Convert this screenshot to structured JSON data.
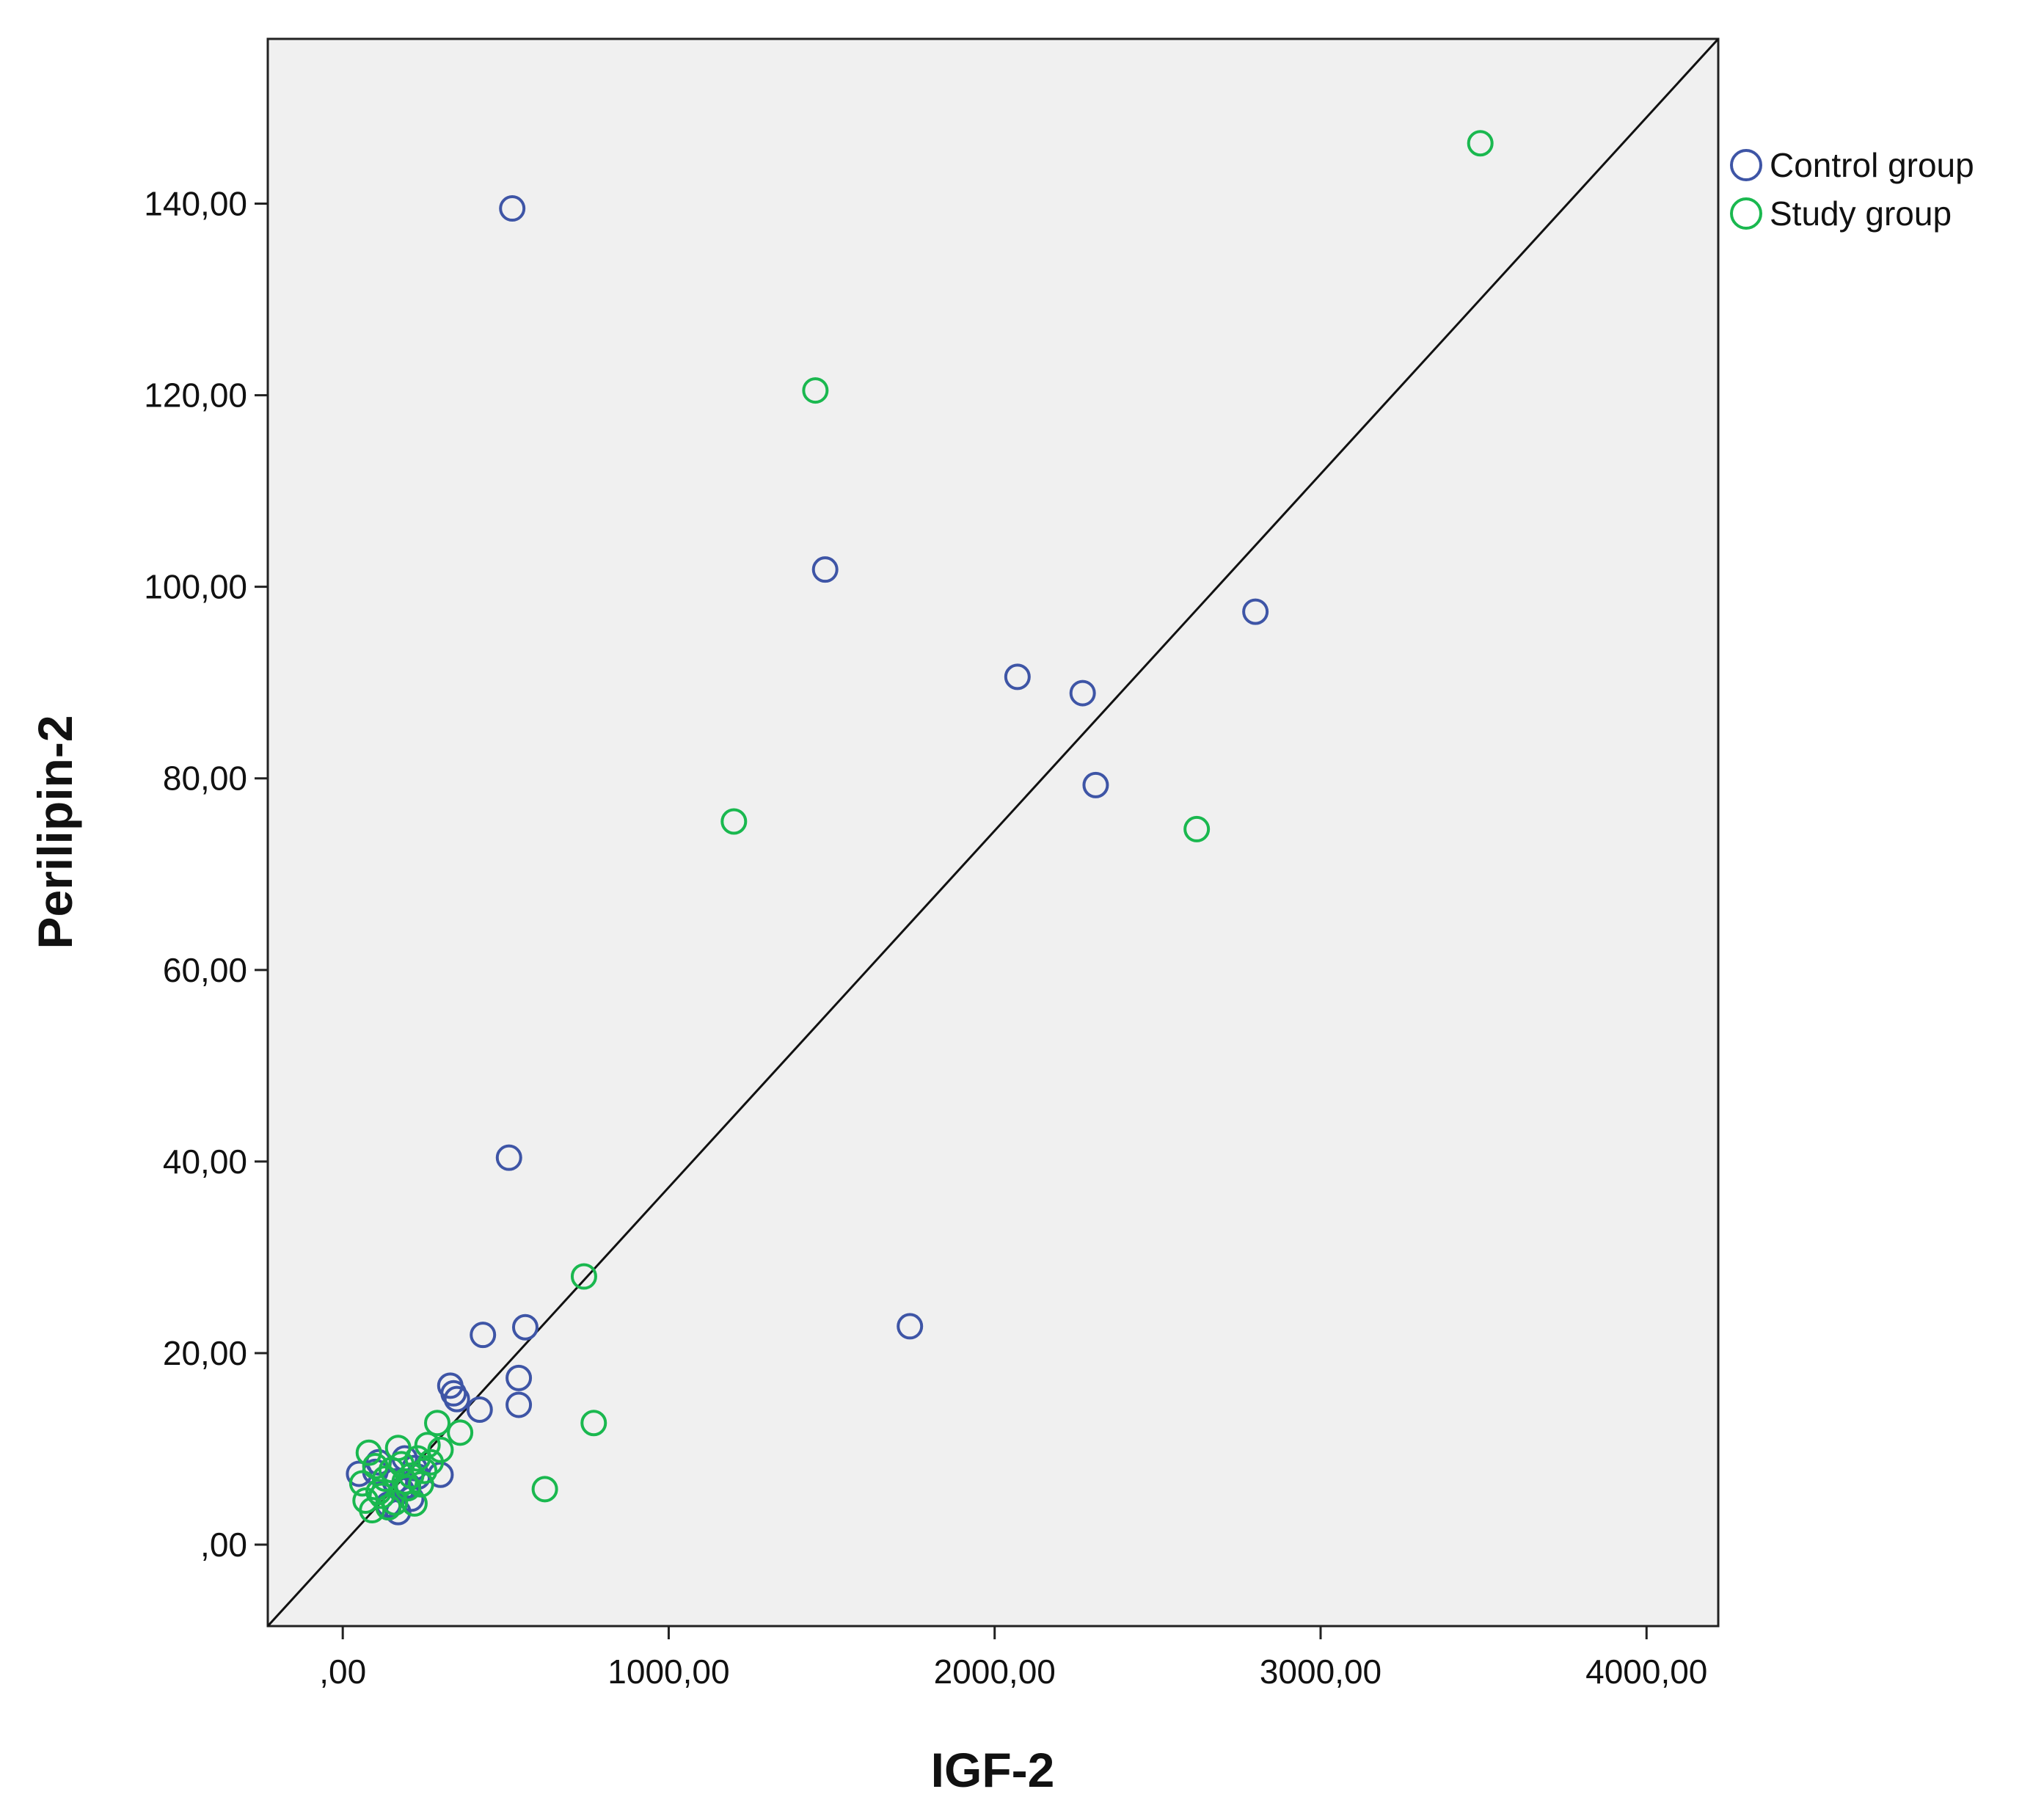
{
  "chart_data": {
    "type": "scatter",
    "title": "",
    "xlabel": "IGF-2",
    "ylabel": "Perilipin-2",
    "xlim": [
      -230,
      4220
    ],
    "ylim": [
      -8.5,
      157.2
    ],
    "x_ticks": [
      {
        "value": 0,
        "label": ",00"
      },
      {
        "value": 1000,
        "label": "1000,00"
      },
      {
        "value": 2000,
        "label": "2000,00"
      },
      {
        "value": 3000,
        "label": "3000,00"
      },
      {
        "value": 4000,
        "label": "4000,00"
      }
    ],
    "y_ticks": [
      {
        "value": 0,
        "label": ",00"
      },
      {
        "value": 20,
        "label": "20,00"
      },
      {
        "value": 40,
        "label": "40,00"
      },
      {
        "value": 60,
        "label": "60,00"
      },
      {
        "value": 80,
        "label": "80,00"
      },
      {
        "value": 100,
        "label": "100,00"
      },
      {
        "value": 120,
        "label": "120,00"
      },
      {
        "value": 140,
        "label": "140,00"
      }
    ],
    "grid": false,
    "legend_position": "top-right, outside plot",
    "plot_background": "#f0f0f0",
    "reference_line": {
      "from": [
        -230,
        -8.5
      ],
      "to": [
        4220,
        157.2
      ]
    },
    "series": [
      {
        "name": "Control group",
        "color": "#3e55a6",
        "marker": "open-circle",
        "points": [
          [
            520,
            139.5
          ],
          [
            1480,
            101.8
          ],
          [
            2800,
            97.4
          ],
          [
            2070,
            90.6
          ],
          [
            2270,
            88.9
          ],
          [
            2310,
            79.3
          ],
          [
            510,
            40.4
          ],
          [
            1740,
            22.8
          ],
          [
            560,
            22.7
          ],
          [
            430,
            21.9
          ],
          [
            540,
            17.4
          ],
          [
            330,
            16.6
          ],
          [
            340,
            15.8
          ],
          [
            350,
            15.2
          ],
          [
            540,
            14.6
          ],
          [
            420,
            14.1
          ],
          [
            300,
            7.3
          ],
          [
            170,
            3.4
          ],
          [
            110,
            8.6
          ],
          [
            180,
            5.7
          ],
          [
            200,
            6.2
          ],
          [
            210,
            4.8
          ],
          [
            190,
            9.0
          ],
          [
            220,
            8.0
          ],
          [
            100,
            7.6
          ],
          [
            140,
            4.2
          ],
          [
            230,
            7.1
          ],
          [
            160,
            6.6
          ],
          [
            50,
            7.4
          ]
        ]
      },
      {
        "name": "Study group",
        "color": "#1ab84f",
        "marker": "open-circle",
        "points": [
          [
            3490,
            146.3
          ],
          [
            1450,
            120.5
          ],
          [
            1200,
            75.5
          ],
          [
            2620,
            74.7
          ],
          [
            740,
            28.0
          ],
          [
            770,
            12.7
          ],
          [
            620,
            5.8
          ],
          [
            290,
            12.7
          ],
          [
            360,
            11.7
          ],
          [
            300,
            9.9
          ],
          [
            80,
            9.6
          ],
          [
            170,
            10.1
          ],
          [
            260,
            10.4
          ],
          [
            60,
            6.4
          ],
          [
            70,
            4.6
          ],
          [
            90,
            3.6
          ],
          [
            120,
            5.1
          ],
          [
            130,
            6.9
          ],
          [
            150,
            7.8
          ],
          [
            160,
            4.4
          ],
          [
            180,
            8.4
          ],
          [
            200,
            5.9
          ],
          [
            210,
            7.2
          ],
          [
            220,
            4.3
          ],
          [
            240,
            6.3
          ],
          [
            250,
            7.7
          ],
          [
            100,
            8.2
          ],
          [
            140,
            3.9
          ],
          [
            190,
            6.6
          ],
          [
            230,
            9.0
          ],
          [
            110,
            5.5
          ],
          [
            270,
            8.6
          ]
        ]
      }
    ]
  }
}
